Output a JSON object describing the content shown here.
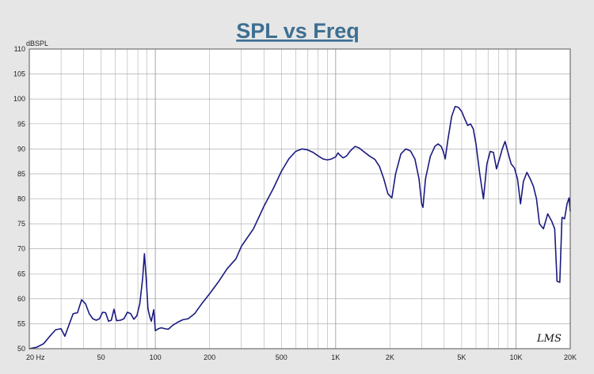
{
  "chart_data": {
    "type": "line",
    "title": "SPL vs Freq",
    "ylabel": "dBSPL",
    "xlabel": "",
    "x_scale": "log",
    "xlim": [
      20,
      20000
    ],
    "ylim": [
      50,
      110
    ],
    "grid": true,
    "yticks": [
      50,
      55,
      60,
      65,
      70,
      75,
      80,
      85,
      90,
      95,
      100,
      105,
      110
    ],
    "xticks": [
      {
        "value": 20,
        "label": "20 Hz"
      },
      {
        "value": 50,
        "label": "50"
      },
      {
        "value": 100,
        "label": "100"
      },
      {
        "value": 200,
        "label": "200"
      },
      {
        "value": 500,
        "label": "500"
      },
      {
        "value": 1000,
        "label": "1K"
      },
      {
        "value": 2000,
        "label": "2K"
      },
      {
        "value": 5000,
        "label": "5K"
      },
      {
        "value": 10000,
        "label": "10K"
      },
      {
        "value": 20000,
        "label": "20K"
      }
    ],
    "series": [
      {
        "color": "#1a1a80",
        "points": [
          [
            20,
            50
          ],
          [
            22,
            50.3
          ],
          [
            24,
            51
          ],
          [
            26,
            52.5
          ],
          [
            28,
            53.8
          ],
          [
            30,
            54
          ],
          [
            31.5,
            52.5
          ],
          [
            33,
            54.5
          ],
          [
            35,
            57
          ],
          [
            37,
            57.2
          ],
          [
            39,
            59.8
          ],
          [
            41,
            59
          ],
          [
            43,
            57
          ],
          [
            45,
            56
          ],
          [
            47,
            55.7
          ],
          [
            49,
            56
          ],
          [
            51,
            57.3
          ],
          [
            53,
            57.2
          ],
          [
            55,
            55.5
          ],
          [
            57,
            55.7
          ],
          [
            59,
            57.9
          ],
          [
            61,
            55.6
          ],
          [
            64,
            55.7
          ],
          [
            67,
            56
          ],
          [
            70,
            57.3
          ],
          [
            73,
            57
          ],
          [
            76,
            55.9
          ],
          [
            79,
            56.6
          ],
          [
            82,
            59
          ],
          [
            85,
            64
          ],
          [
            87,
            69
          ],
          [
            89,
            64
          ],
          [
            91,
            58
          ],
          [
            93,
            56.5
          ],
          [
            95,
            55.5
          ],
          [
            98,
            57.8
          ],
          [
            100,
            53.6
          ],
          [
            104,
            54
          ],
          [
            108,
            54.2
          ],
          [
            113,
            54
          ],
          [
            118,
            53.9
          ],
          [
            125,
            54.7
          ],
          [
            133,
            55.3
          ],
          [
            142,
            55.8
          ],
          [
            152,
            56
          ],
          [
            165,
            57
          ],
          [
            180,
            58.9
          ],
          [
            200,
            61
          ],
          [
            225,
            63.5
          ],
          [
            250,
            66
          ],
          [
            280,
            68
          ],
          [
            300,
            70.5
          ],
          [
            350,
            74
          ],
          [
            400,
            78.5
          ],
          [
            450,
            82
          ],
          [
            500,
            85.5
          ],
          [
            550,
            88
          ],
          [
            600,
            89.5
          ],
          [
            650,
            90
          ],
          [
            700,
            89.8
          ],
          [
            750,
            89.3
          ],
          [
            800,
            88.6
          ],
          [
            850,
            88
          ],
          [
            900,
            87.8
          ],
          [
            950,
            88
          ],
          [
            1000,
            88.4
          ],
          [
            1030,
            89.2
          ],
          [
            1060,
            88.7
          ],
          [
            1100,
            88.2
          ],
          [
            1150,
            88.6
          ],
          [
            1200,
            89.5
          ],
          [
            1280,
            90.5
          ],
          [
            1350,
            90.2
          ],
          [
            1450,
            89.3
          ],
          [
            1550,
            88.5
          ],
          [
            1650,
            87.9
          ],
          [
            1750,
            86.5
          ],
          [
            1850,
            84
          ],
          [
            1950,
            81
          ],
          [
            2050,
            80.2
          ],
          [
            2150,
            85
          ],
          [
            2300,
            89
          ],
          [
            2450,
            90
          ],
          [
            2600,
            89.6
          ],
          [
            2750,
            88
          ],
          [
            2900,
            84
          ],
          [
            3000,
            79
          ],
          [
            3050,
            78.3
          ],
          [
            3150,
            84
          ],
          [
            3350,
            88.5
          ],
          [
            3550,
            90.5
          ],
          [
            3700,
            91
          ],
          [
            3850,
            90.5
          ],
          [
            3950,
            89.5
          ],
          [
            4050,
            88
          ],
          [
            4200,
            92
          ],
          [
            4400,
            96.5
          ],
          [
            4600,
            98.5
          ],
          [
            4800,
            98.3
          ],
          [
            5000,
            97.5
          ],
          [
            5200,
            96
          ],
          [
            5400,
            94.7
          ],
          [
            5600,
            95
          ],
          [
            5800,
            94
          ],
          [
            6000,
            91
          ],
          [
            6300,
            85
          ],
          [
            6600,
            80
          ],
          [
            6900,
            87
          ],
          [
            7200,
            89.5
          ],
          [
            7500,
            89.3
          ],
          [
            7800,
            86
          ],
          [
            8100,
            88
          ],
          [
            8400,
            90
          ],
          [
            8700,
            91.5
          ],
          [
            9000,
            89.5
          ],
          [
            9400,
            87
          ],
          [
            9800,
            86.2
          ],
          [
            10200,
            84
          ],
          [
            10600,
            79
          ],
          [
            11000,
            83.5
          ],
          [
            11500,
            85.3
          ],
          [
            12000,
            84
          ],
          [
            12500,
            82.5
          ],
          [
            13000,
            80
          ],
          [
            13500,
            75
          ],
          [
            14200,
            74
          ],
          [
            15000,
            77
          ],
          [
            15800,
            75.5
          ],
          [
            16400,
            74
          ],
          [
            16900,
            63.5
          ],
          [
            17500,
            63.3
          ],
          [
            18000,
            76.3
          ],
          [
            18600,
            76
          ],
          [
            19200,
            79
          ],
          [
            19700,
            80.2
          ],
          [
            20000,
            77.5
          ]
        ]
      }
    ]
  },
  "logo": {
    "text": "LMS"
  }
}
